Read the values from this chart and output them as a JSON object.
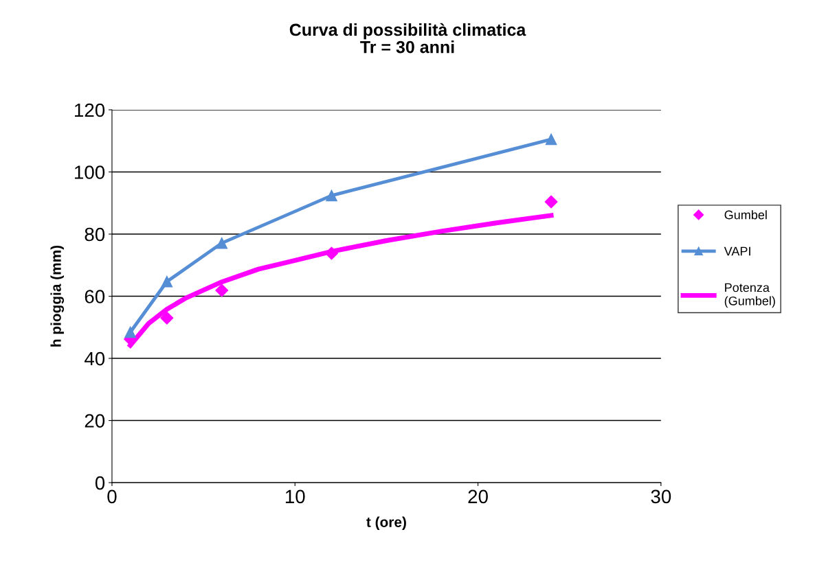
{
  "chart_data": {
    "type": "line",
    "title": "Curva di possibilità climatica\nTr = 30 anni",
    "xlabel": "t (ore)",
    "ylabel": "h pioggia (mm)",
    "xlim": [
      0,
      30
    ],
    "xticks": [
      0,
      10,
      20,
      30
    ],
    "ylim": [
      0,
      120
    ],
    "yticks": [
      0,
      20,
      40,
      60,
      80,
      100,
      120
    ],
    "grid": "y",
    "legend": "right",
    "series": [
      {
        "name": "Gumbel",
        "type": "scatter",
        "marker": "diamond",
        "color": "#ff00ff",
        "x": [
          1,
          3,
          6,
          12,
          24
        ],
        "values": [
          46.2,
          53.0,
          61.9,
          73.8,
          90.4
        ]
      },
      {
        "name": "VAPI",
        "marker": "triangle",
        "color": "#558ed5",
        "x": [
          1,
          3,
          6,
          12,
          24
        ],
        "values": [
          48.4,
          64.7,
          77.1,
          92.4,
          110.5
        ]
      },
      {
        "name": "Potenza\n(Gumbel)",
        "marker": "none",
        "color": "#ff00ff",
        "x": [
          1,
          2,
          3,
          4,
          6,
          8,
          10,
          12,
          15,
          18,
          21,
          24
        ],
        "values": [
          44.2,
          51.2,
          55.8,
          59.3,
          64.6,
          68.7,
          71.5,
          74.4,
          77.9,
          80.9,
          83.6,
          86.0
        ]
      }
    ]
  }
}
